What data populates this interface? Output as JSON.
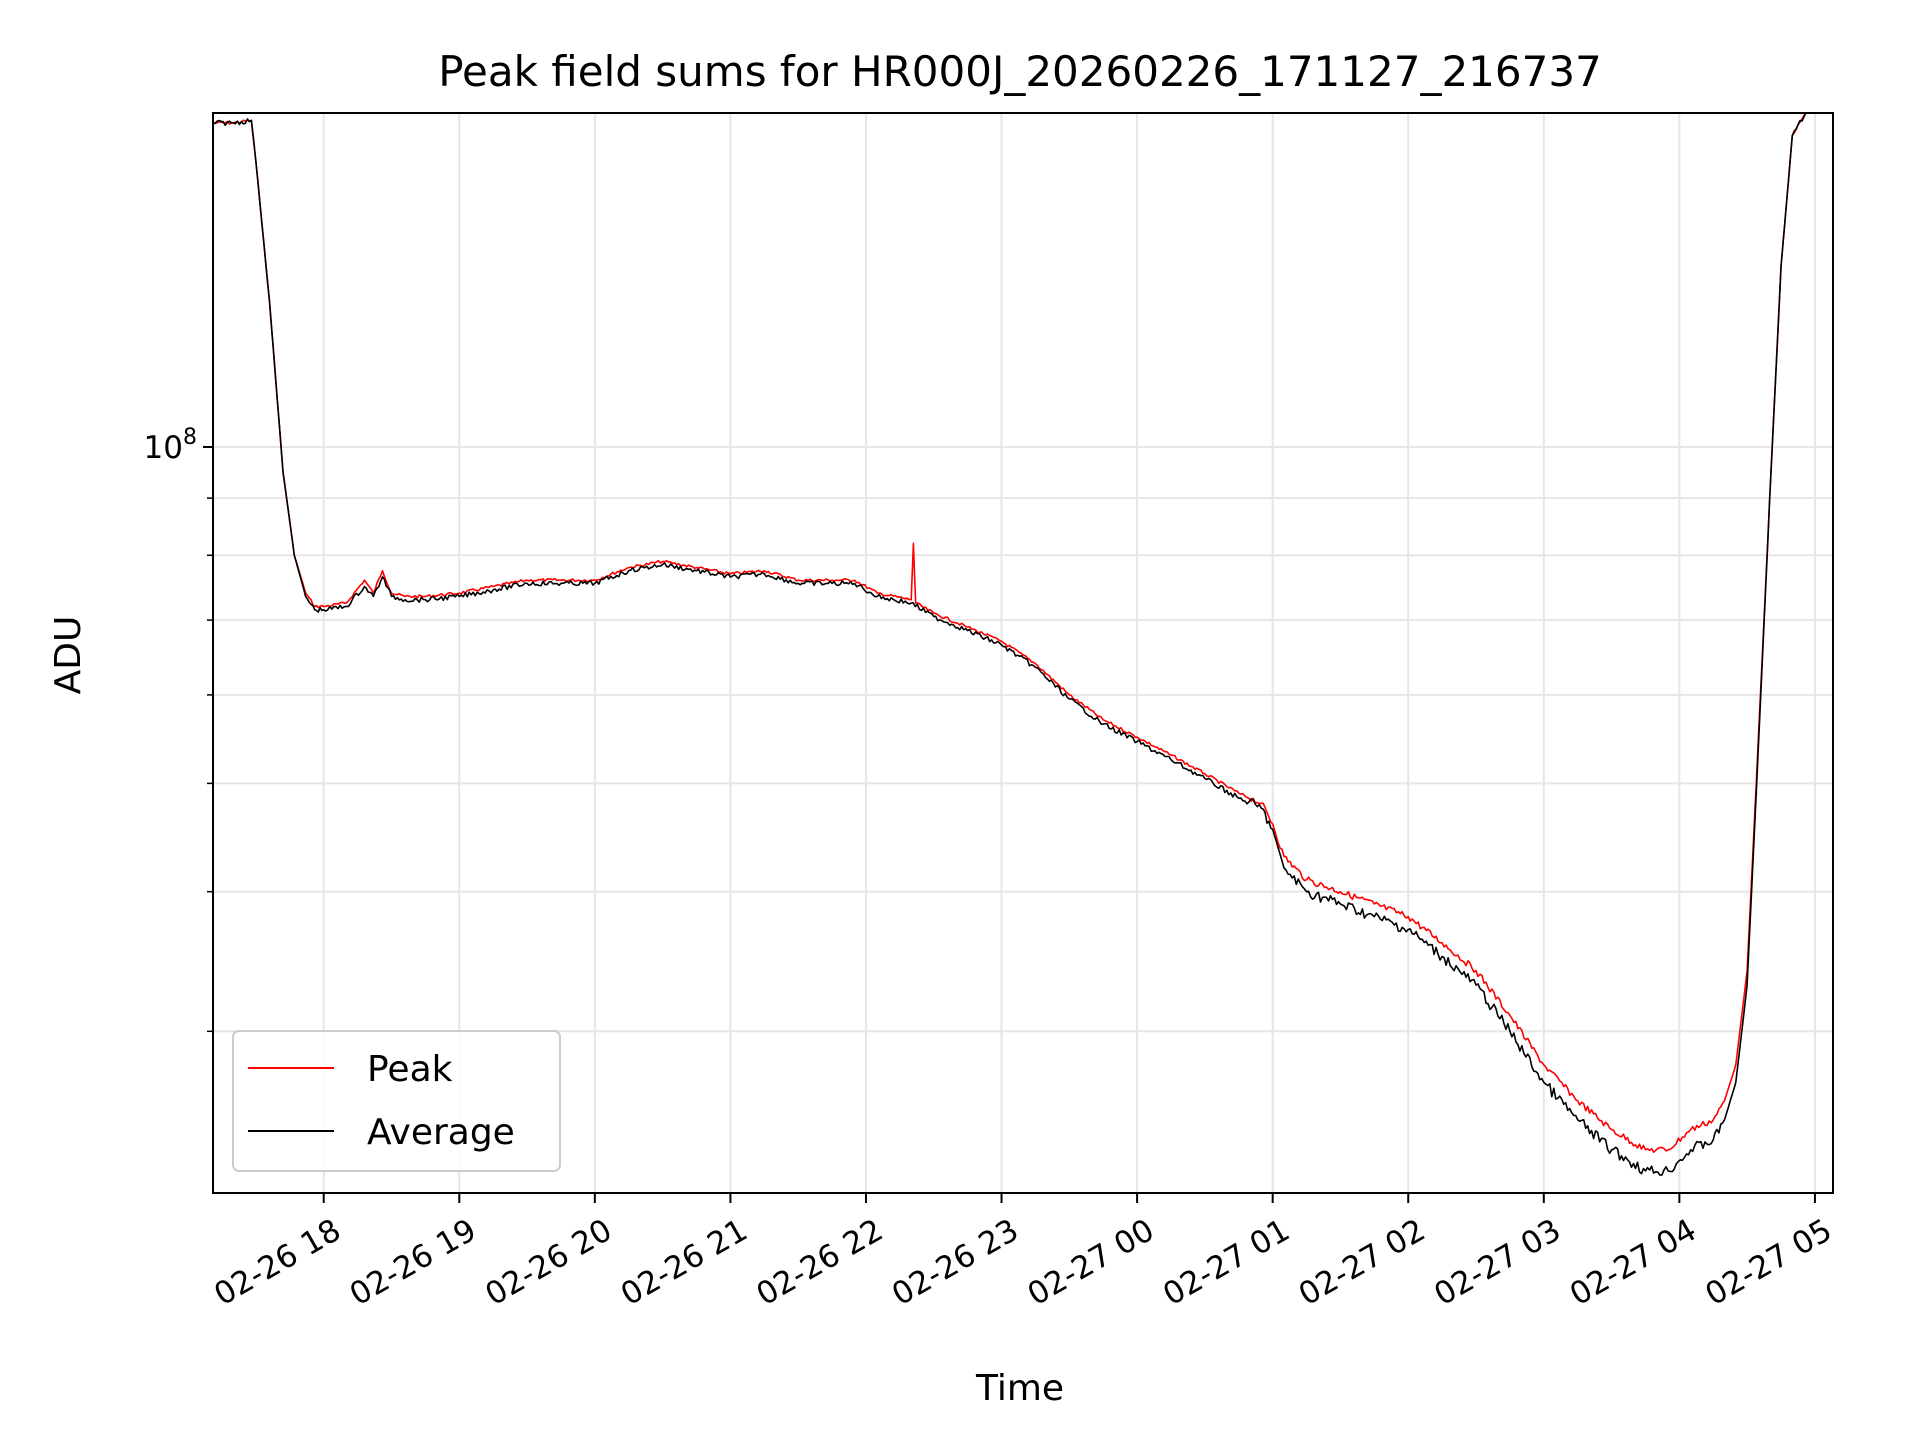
{
  "chart_data": {
    "type": "line",
    "title": "Peak field sums for HR000J_20260226_171127_216737",
    "xlabel": "Time",
    "ylabel": "ADU",
    "x_axis_type": "datetime",
    "xlim": [
      "2026-02-26 17:11",
      "2026-02-27 05:08"
    ],
    "y_scale": "log",
    "ylim": [
      21500000,
      199000000
    ],
    "grid": true,
    "legend_position": "lower-left",
    "x_ticks": [
      {
        "t": "2026-02-26 18:00",
        "label": "02-26 18"
      },
      {
        "t": "2026-02-26 19:00",
        "label": "02-26 19"
      },
      {
        "t": "2026-02-26 20:00",
        "label": "02-26 20"
      },
      {
        "t": "2026-02-26 21:00",
        "label": "02-26 21"
      },
      {
        "t": "2026-02-26 22:00",
        "label": "02-26 22"
      },
      {
        "t": "2026-02-26 23:00",
        "label": "02-26 23"
      },
      {
        "t": "2026-02-27 00:00",
        "label": "02-27 00"
      },
      {
        "t": "2026-02-27 01:00",
        "label": "02-27 01"
      },
      {
        "t": "2026-02-27 02:00",
        "label": "02-27 02"
      },
      {
        "t": "2026-02-27 03:00",
        "label": "02-27 03"
      },
      {
        "t": "2026-02-27 04:00",
        "label": "02-27 04"
      },
      {
        "t": "2026-02-27 05:00",
        "label": "02-27 05"
      }
    ],
    "y_major_ticks": [
      {
        "value": 100000000,
        "base": "10",
        "exp": "8"
      }
    ],
    "y_minor_ticks": [
      30000000,
      40000000,
      50000000,
      60000000,
      70000000,
      80000000,
      90000000
    ],
    "series": [
      {
        "name": "Peak",
        "color": "#ff0000",
        "x": [
          "2026-02-26 17:11",
          "2026-02-26 17:20",
          "2026-02-26 17:28",
          "2026-02-26 17:30",
          "2026-02-26 17:36",
          "2026-02-26 17:42",
          "2026-02-26 17:47",
          "2026-02-26 17:52",
          "2026-02-26 17:56",
          "2026-02-26 18:00",
          "2026-02-26 18:10",
          "2026-02-26 18:18",
          "2026-02-26 18:22",
          "2026-02-26 18:26",
          "2026-02-26 18:30",
          "2026-02-26 18:36",
          "2026-02-26 18:45",
          "2026-02-26 19:00",
          "2026-02-26 19:15",
          "2026-02-26 19:30",
          "2026-02-26 19:45",
          "2026-02-26 20:00",
          "2026-02-26 20:15",
          "2026-02-26 20:30",
          "2026-02-26 20:45",
          "2026-02-26 21:00",
          "2026-02-26 21:15",
          "2026-02-26 21:30",
          "2026-02-26 21:45",
          "2026-02-26 21:55",
          "2026-02-26 22:05",
          "2026-02-26 22:20",
          "2026-02-26 22:21",
          "2026-02-26 22:22",
          "2026-02-26 22:30",
          "2026-02-26 22:45",
          "2026-02-26 23:00",
          "2026-02-26 23:15",
          "2026-02-26 23:30",
          "2026-02-26 23:45",
          "2026-02-27 00:00",
          "2026-02-27 00:15",
          "2026-02-27 00:30",
          "2026-02-27 00:45",
          "2026-02-27 00:55",
          "2026-02-27 01:00",
          "2026-02-27 01:05",
          "2026-02-27 01:15",
          "2026-02-27 01:30",
          "2026-02-27 01:45",
          "2026-02-27 02:00",
          "2026-02-27 02:15",
          "2026-02-27 02:30",
          "2026-02-27 02:45",
          "2026-02-27 03:00",
          "2026-02-27 03:15",
          "2026-02-27 03:30",
          "2026-02-27 03:45",
          "2026-02-27 03:55",
          "2026-02-27 04:05",
          "2026-02-27 04:15",
          "2026-02-27 04:20",
          "2026-02-27 04:25",
          "2026-02-27 04:30",
          "2026-02-27 04:35",
          "2026-02-27 04:40",
          "2026-02-27 04:45",
          "2026-02-27 04:50",
          "2026-02-27 04:56"
        ],
        "y": [
          195000000,
          195000000,
          196000000,
          180000000,
          135000000,
          95000000,
          80000000,
          74000000,
          72000000,
          72000000,
          72500000,
          76000000,
          74000000,
          77500000,
          74000000,
          73500000,
          73500000,
          74000000,
          75000000,
          76000000,
          76000000,
          76000000,
          78000000,
          79000000,
          78000000,
          77000000,
          77500000,
          76000000,
          76000000,
          76000000,
          74000000,
          73000000,
          82000000,
          72500000,
          71000000,
          69000000,
          67000000,
          64000000,
          60000000,
          57000000,
          55000000,
          53000000,
          51000000,
          49000000,
          48000000,
          46000000,
          43000000,
          41000000,
          40000000,
          39000000,
          38000000,
          36000000,
          34000000,
          31000000,
          28000000,
          26000000,
          24500000,
          23500000,
          23500000,
          24500000,
          25000000,
          26000000,
          28000000,
          34000000,
          55000000,
          90000000,
          145000000,
          190000000,
          199000000
        ]
      },
      {
        "name": "Average",
        "color": "#000000",
        "x": [
          "2026-02-26 17:11",
          "2026-02-26 17:20",
          "2026-02-26 17:28",
          "2026-02-26 17:30",
          "2026-02-26 17:36",
          "2026-02-26 17:42",
          "2026-02-26 17:47",
          "2026-02-26 17:52",
          "2026-02-26 17:56",
          "2026-02-26 18:00",
          "2026-02-26 18:10",
          "2026-02-26 18:18",
          "2026-02-26 18:22",
          "2026-02-26 18:26",
          "2026-02-26 18:30",
          "2026-02-26 18:36",
          "2026-02-26 18:45",
          "2026-02-26 19:00",
          "2026-02-26 19:15",
          "2026-02-26 19:30",
          "2026-02-26 19:45",
          "2026-02-26 20:00",
          "2026-02-26 20:15",
          "2026-02-26 20:30",
          "2026-02-26 20:45",
          "2026-02-26 21:00",
          "2026-02-26 21:15",
          "2026-02-26 21:30",
          "2026-02-26 21:45",
          "2026-02-26 21:55",
          "2026-02-26 22:05",
          "2026-02-26 22:20",
          "2026-02-26 22:30",
          "2026-02-26 22:45",
          "2026-02-26 23:00",
          "2026-02-26 23:15",
          "2026-02-26 23:30",
          "2026-02-26 23:45",
          "2026-02-27 00:00",
          "2026-02-27 00:15",
          "2026-02-27 00:30",
          "2026-02-27 00:45",
          "2026-02-27 00:55",
          "2026-02-27 01:00",
          "2026-02-27 01:05",
          "2026-02-27 01:15",
          "2026-02-27 01:30",
          "2026-02-27 01:45",
          "2026-02-27 02:00",
          "2026-02-27 02:15",
          "2026-02-27 02:30",
          "2026-02-27 02:45",
          "2026-02-27 03:00",
          "2026-02-27 03:15",
          "2026-02-27 03:30",
          "2026-02-27 03:45",
          "2026-02-27 03:55",
          "2026-02-27 04:05",
          "2026-02-27 04:15",
          "2026-02-27 04:20",
          "2026-02-27 04:25",
          "2026-02-27 04:30",
          "2026-02-27 04:35",
          "2026-02-27 04:40",
          "2026-02-27 04:45",
          "2026-02-27 04:50",
          "2026-02-27 04:56"
        ],
        "y": [
          195000000,
          195000000,
          196000000,
          180000000,
          135000000,
          95000000,
          80000000,
          73500000,
          71500000,
          71500000,
          72000000,
          75000000,
          73500000,
          76500000,
          73500000,
          73000000,
          73000000,
          73500000,
          74500000,
          75500000,
          75500000,
          75500000,
          77500000,
          78500000,
          77500000,
          76500000,
          77000000,
          75500000,
          75500000,
          75500000,
          73500000,
          72500000,
          70500000,
          68500000,
          66500000,
          63500000,
          59500000,
          56500000,
          54500000,
          52500000,
          50500000,
          48500000,
          47500000,
          45500000,
          42000000,
          40000000,
          39000000,
          38000000,
          37000000,
          35000000,
          33000000,
          30000000,
          27000000,
          25000000,
          23500000,
          22500000,
          22500000,
          23500000,
          24000000,
          25000000,
          27000000,
          33000000,
          54000000,
          90000000,
          145000000,
          190000000,
          199000000
        ]
      }
    ],
    "legend": [
      {
        "label": "Peak",
        "color": "#ff0000"
      },
      {
        "label": "Average",
        "color": "#000000"
      }
    ]
  }
}
